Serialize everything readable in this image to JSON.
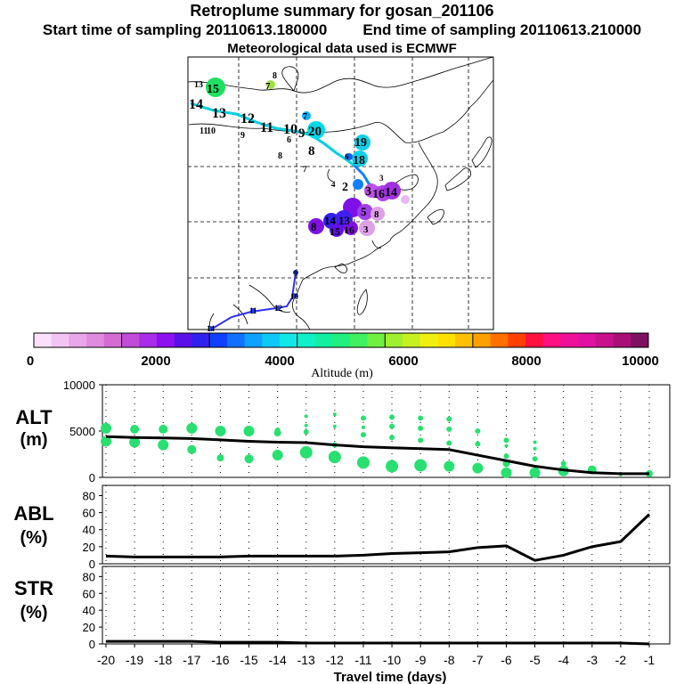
{
  "title": "Retroplume summary for gosan_201106",
  "start_label": "Start time of sampling 20110613.180000",
  "end_label": "End time of sampling 20110613.210000",
  "met_label": "Meteorological data used is ECMWF",
  "colorbar": {
    "ticks": [
      "0",
      "2000",
      "4000",
      "6000",
      "8000",
      "10000"
    ],
    "label": "Altitude (m)",
    "colors": [
      "#fbe0fb",
      "#f3c4f3",
      "#eaa6ea",
      "#e08ae0",
      "#d46cd4",
      "#c24cd8",
      "#a82ce8",
      "#8c10f0",
      "#5a10e8",
      "#3020f0",
      "#1040ff",
      "#1070ff",
      "#10a0ff",
      "#10c8f8",
      "#10e8e8",
      "#10f0c8",
      "#10f0a0",
      "#20f080",
      "#40f060",
      "#70f040",
      "#a0f030",
      "#c8f020",
      "#f0f010",
      "#ffe000",
      "#ffc000",
      "#ffa000",
      "#ff7000",
      "#ff4000",
      "#ff1040",
      "#ff1080",
      "#f01098",
      "#e010a0",
      "#c8108c",
      "#a81078",
      "#801060"
    ],
    "breaks": [
      5,
      10,
      15,
      20,
      25
    ]
  },
  "map": {
    "trajectory_colors": [
      "#00d0e0",
      "#1080ff",
      "#3030f0"
    ],
    "plume_labels": [
      {
        "text": "13",
        "color": "#00e8c0"
      },
      {
        "text": "15",
        "color": "#20e060"
      },
      {
        "text": "8",
        "color": "#40d0e0"
      },
      {
        "text": "7",
        "color": "#a0e040"
      },
      {
        "text": "14",
        "color": "#00d0e0"
      },
      {
        "text": "13",
        "color": "#00d0e0"
      },
      {
        "text": "12",
        "color": "#00d0e0"
      },
      {
        "text": "11",
        "color": "#00d0e0"
      },
      {
        "text": "10",
        "color": "#00d0e0"
      },
      {
        "text": "9",
        "color": "#00d0e0"
      },
      {
        "text": "20",
        "color": "#00d8e8"
      },
      {
        "text": "8",
        "color": "#00d0e0"
      },
      {
        "text": "7",
        "color": "#10a0ff"
      },
      {
        "text": "11",
        "color": "#00d0e0"
      },
      {
        "text": "10",
        "color": "#00d0e0"
      },
      {
        "text": "9",
        "color": "#00d0e0"
      },
      {
        "text": "6",
        "color": "#00d0e0"
      },
      {
        "text": "8",
        "color": "#00d0e0"
      },
      {
        "text": "19",
        "color": "#10d0e8"
      },
      {
        "text": "18",
        "color": "#10d0e8"
      },
      {
        "text": "6",
        "color": "#1060ff"
      },
      {
        "text": "7",
        "color": "#10a0ff"
      },
      {
        "text": "4",
        "color": "#2040f0"
      },
      {
        "text": "3",
        "color": "#3030f0"
      },
      {
        "text": "2",
        "color": "#1060ff"
      },
      {
        "text": "3",
        "color": "#a020e8"
      },
      {
        "text": "16",
        "color": "#c040e8"
      },
      {
        "text": "14",
        "color": "#a030e0"
      },
      {
        "text": "5",
        "color": "#c050e8"
      },
      {
        "text": "8",
        "color": "#e0a0e8"
      },
      {
        "text": "8",
        "color": "#8010e8"
      },
      {
        "text": "14",
        "color": "#3020f0"
      },
      {
        "text": "13",
        "color": "#4020f0"
      },
      {
        "text": "15",
        "color": "#6010e8"
      },
      {
        "text": "16",
        "color": "#8010e8"
      },
      {
        "text": "3",
        "color": "#e0a0e8"
      },
      {
        "text": "9",
        "color": "#2040f0"
      },
      {
        "text": "10",
        "color": "#2040f0"
      },
      {
        "text": "12",
        "color": "#2040f0"
      },
      {
        "text": "11",
        "color": "#2040f0"
      },
      {
        "text": "14",
        "color": "#2040f0"
      }
    ]
  },
  "chart_data": [
    {
      "type": "scatter",
      "panel_label": [
        "ALT",
        "(m)"
      ],
      "yticks": [
        "0",
        "5000",
        "10000"
      ],
      "ylim": [
        0,
        10000
      ],
      "x": [
        -20,
        -19,
        -18,
        -17,
        -16,
        -15,
        -14,
        -13,
        -12,
        -11,
        -10,
        -9,
        -8,
        -7,
        -6,
        -5,
        -4,
        -3,
        -2,
        -1
      ],
      "series": [
        {
          "name": "mean altitude",
          "type": "line",
          "values": [
            4400,
            4300,
            4250,
            4200,
            4050,
            3900,
            3800,
            3750,
            3500,
            3300,
            3200,
            3100,
            3000,
            2400,
            1800,
            1200,
            800,
            500,
            400,
            400
          ]
        },
        {
          "name": "plume altitudes",
          "type": "scatter",
          "points": [
            {
              "x": -20,
              "y": 5300,
              "s": 6
            },
            {
              "x": -20,
              "y": 3900,
              "s": 6
            },
            {
              "x": -19,
              "y": 5200,
              "s": 5
            },
            {
              "x": -19,
              "y": 3800,
              "s": 6
            },
            {
              "x": -18,
              "y": 5200,
              "s": 5
            },
            {
              "x": -18,
              "y": 3500,
              "s": 6
            },
            {
              "x": -17,
              "y": 5300,
              "s": 6
            },
            {
              "x": -17,
              "y": 3000,
              "s": 5
            },
            {
              "x": -16,
              "y": 5000,
              "s": 6
            },
            {
              "x": -16,
              "y": 2100,
              "s": 4
            },
            {
              "x": -15,
              "y": 5000,
              "s": 6
            },
            {
              "x": -15,
              "y": 2000,
              "s": 5
            },
            {
              "x": -14,
              "y": 5100,
              "s": 3
            },
            {
              "x": -14,
              "y": 4800,
              "s": 4
            },
            {
              "x": -14,
              "y": 2400,
              "s": 6
            },
            {
              "x": -13,
              "y": 6600,
              "s": 2
            },
            {
              "x": -13,
              "y": 5600,
              "s": 2
            },
            {
              "x": -13,
              "y": 4900,
              "s": 3
            },
            {
              "x": -13,
              "y": 2700,
              "s": 7
            },
            {
              "x": -12,
              "y": 6800,
              "s": 2
            },
            {
              "x": -12,
              "y": 5500,
              "s": 2
            },
            {
              "x": -12,
              "y": 3500,
              "s": 3
            },
            {
              "x": -12,
              "y": 2200,
              "s": 7
            },
            {
              "x": -11,
              "y": 6400,
              "s": 3
            },
            {
              "x": -11,
              "y": 5400,
              "s": 2
            },
            {
              "x": -11,
              "y": 4600,
              "s": 3
            },
            {
              "x": -11,
              "y": 1600,
              "s": 7
            },
            {
              "x": -10,
              "y": 6500,
              "s": 3
            },
            {
              "x": -10,
              "y": 5500,
              "s": 3
            },
            {
              "x": -10,
              "y": 4300,
              "s": 3
            },
            {
              "x": -10,
              "y": 1200,
              "s": 7
            },
            {
              "x": -9,
              "y": 6400,
              "s": 3
            },
            {
              "x": -9,
              "y": 5300,
              "s": 3
            },
            {
              "x": -9,
              "y": 4000,
              "s": 3
            },
            {
              "x": -9,
              "y": 1300,
              "s": 7
            },
            {
              "x": -8,
              "y": 6300,
              "s": 3
            },
            {
              "x": -8,
              "y": 5200,
              "s": 3
            },
            {
              "x": -8,
              "y": 3700,
              "s": 3
            },
            {
              "x": -8,
              "y": 1200,
              "s": 6
            },
            {
              "x": -7,
              "y": 5000,
              "s": 3
            },
            {
              "x": -7,
              "y": 3600,
              "s": 3
            },
            {
              "x": -7,
              "y": 1000,
              "s": 6
            },
            {
              "x": -6,
              "y": 4000,
              "s": 3
            },
            {
              "x": -6,
              "y": 3400,
              "s": 2
            },
            {
              "x": -6,
              "y": 2300,
              "s": 3
            },
            {
              "x": -6,
              "y": 1500,
              "s": 4
            },
            {
              "x": -6,
              "y": 500,
              "s": 6
            },
            {
              "x": -5,
              "y": 3800,
              "s": 2
            },
            {
              "x": -5,
              "y": 3100,
              "s": 2
            },
            {
              "x": -5,
              "y": 2000,
              "s": 3
            },
            {
              "x": -5,
              "y": 500,
              "s": 6
            },
            {
              "x": -4,
              "y": 1500,
              "s": 3
            },
            {
              "x": -4,
              "y": 700,
              "s": 6
            },
            {
              "x": -3,
              "y": 800,
              "s": 5
            },
            {
              "x": -2,
              "y": 300,
              "s": 2
            },
            {
              "x": -1,
              "y": 400,
              "s": 4
            }
          ]
        }
      ]
    },
    {
      "type": "line",
      "panel_label": [
        "ABL",
        "(%)"
      ],
      "yticks": [
        "0",
        "20",
        "40",
        "60",
        "80"
      ],
      "ylim": [
        0,
        92
      ],
      "x": [
        -20,
        -19,
        -18,
        -17,
        -16,
        -15,
        -14,
        -13,
        -12,
        -11,
        -10,
        -9,
        -8,
        -7,
        -6,
        -5,
        -4,
        -3,
        -2,
        -1
      ],
      "values": [
        9,
        8,
        8,
        8,
        8,
        9,
        9,
        9,
        9,
        10,
        12,
        13,
        14,
        19,
        21,
        4,
        10,
        20,
        26,
        58
      ]
    },
    {
      "type": "line",
      "panel_label": [
        "STR",
        "(%)"
      ],
      "yticks": [
        "0",
        "20",
        "40",
        "60",
        "80"
      ],
      "ylim": [
        0,
        92
      ],
      "x": [
        -20,
        -19,
        -18,
        -17,
        -16,
        -15,
        -14,
        -13,
        -12,
        -11,
        -10,
        -9,
        -8,
        -7,
        -6,
        -5,
        -4,
        -3,
        -2,
        -1
      ],
      "values": [
        3,
        3,
        3,
        3,
        2,
        2,
        2,
        1,
        1,
        1,
        1,
        1,
        1,
        1,
        1,
        1,
        1,
        1,
        1,
        0
      ]
    }
  ],
  "xaxis": {
    "ticks": [
      "-20",
      "-19",
      "-18",
      "-17",
      "-16",
      "-15",
      "-14",
      "-13",
      "-12",
      "-11",
      "-10",
      "-9",
      "-8",
      "-7",
      "-6",
      "-5",
      "-4",
      "-3",
      "-2",
      "-1"
    ],
    "label": "Travel time (days)"
  }
}
